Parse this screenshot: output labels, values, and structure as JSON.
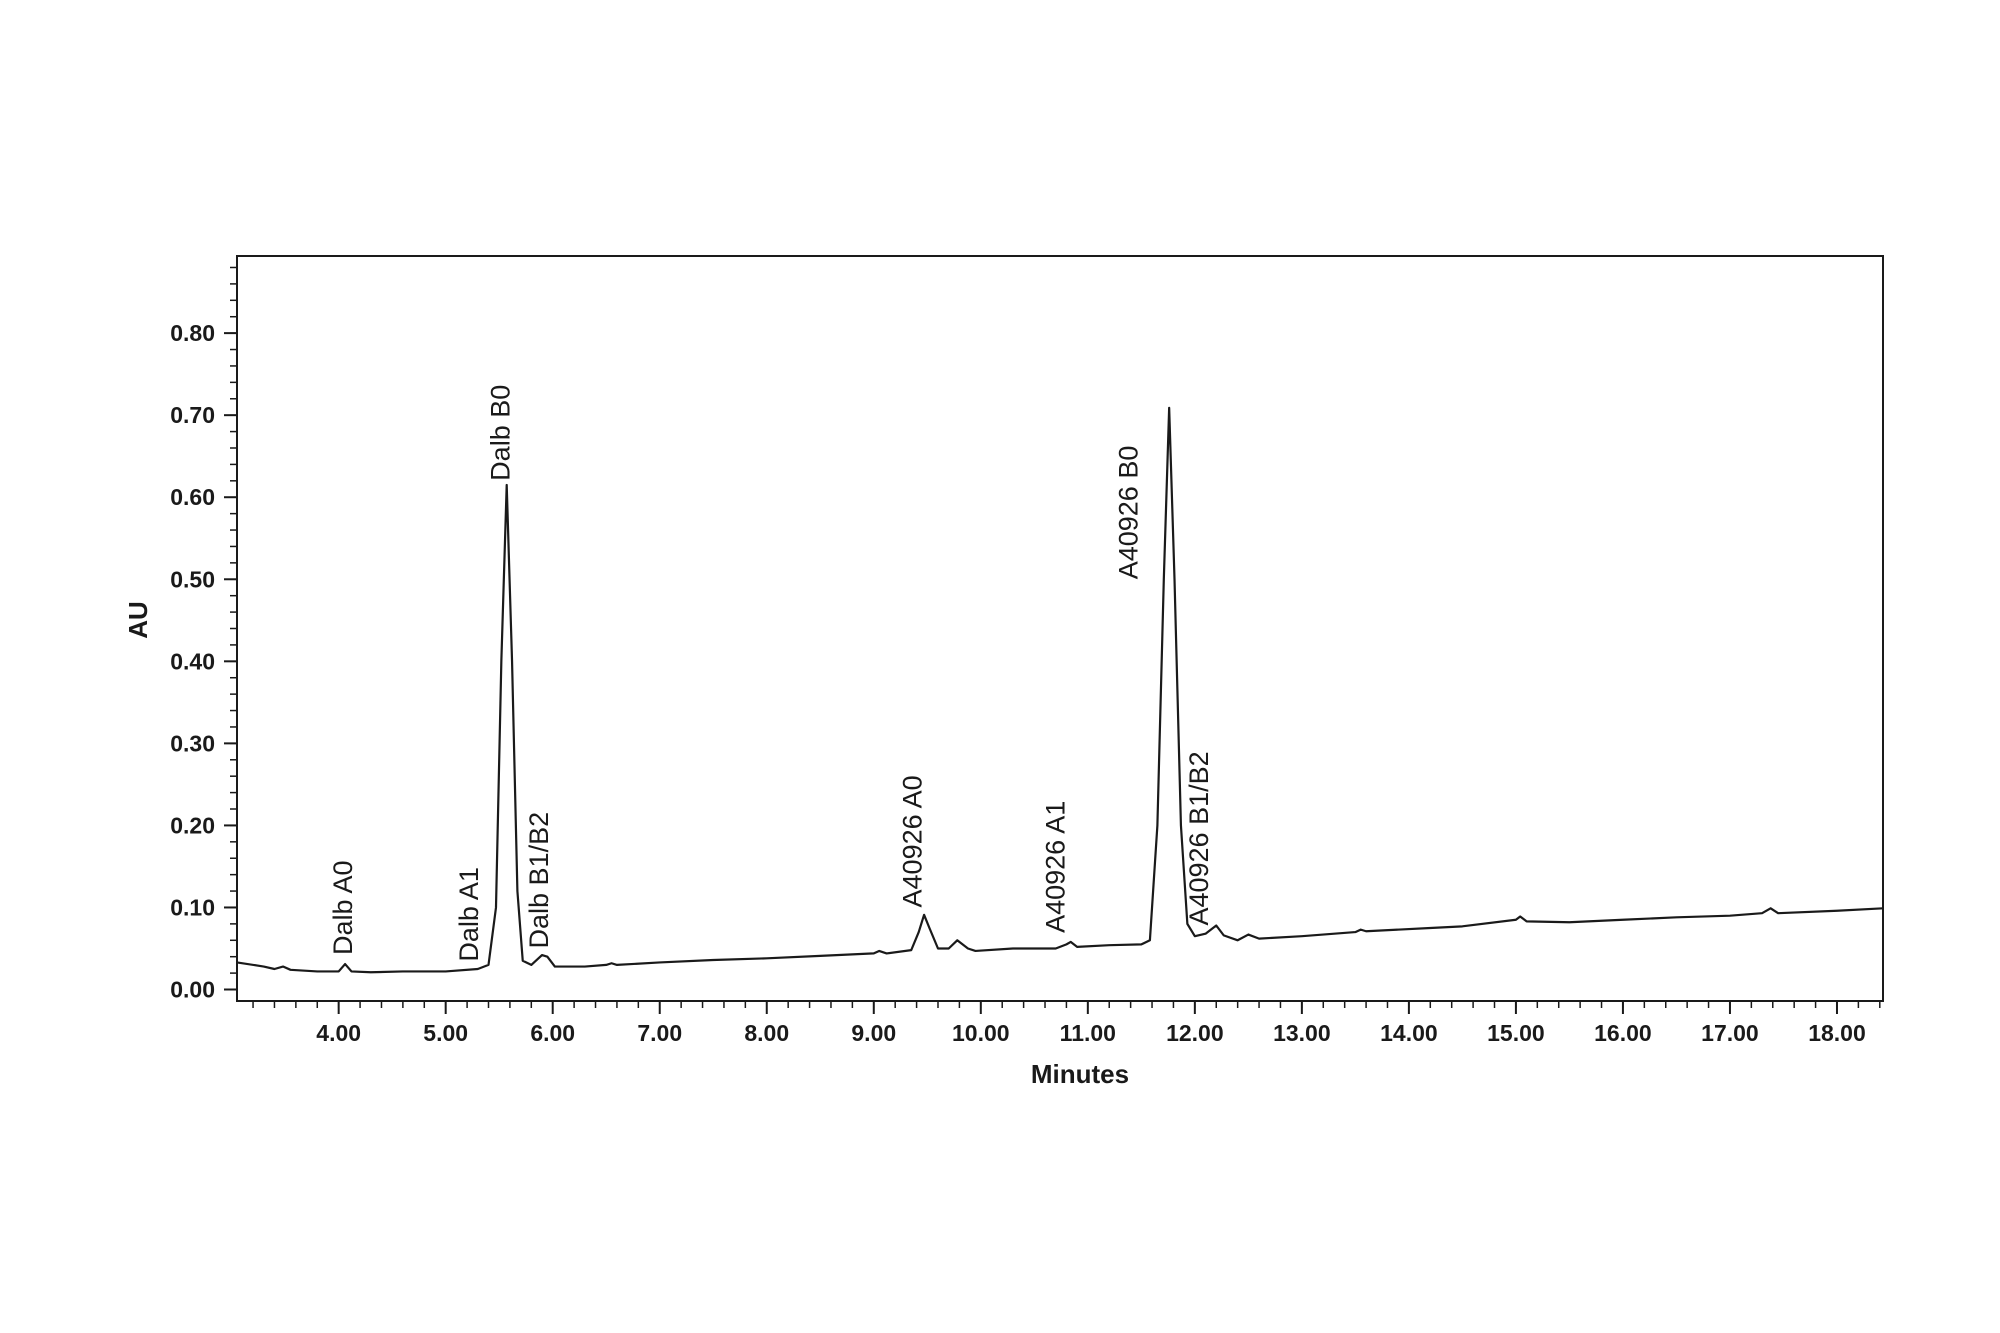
{
  "chart_data": {
    "type": "line",
    "x_label": "Minutes",
    "y_label": "AU",
    "xlim": [
      3.05,
      18.43
    ],
    "ylim": [
      -0.014,
      0.894
    ],
    "xticks": [
      {
        "value": 4,
        "label": "4.00"
      },
      {
        "value": 5,
        "label": "5.00"
      },
      {
        "value": 6,
        "label": "6.00"
      },
      {
        "value": 7,
        "label": "7.00"
      },
      {
        "value": 8,
        "label": "8.00"
      },
      {
        "value": 9,
        "label": "9.00"
      },
      {
        "value": 10,
        "label": "10.00"
      },
      {
        "value": 11,
        "label": "11.00"
      },
      {
        "value": 12,
        "label": "12.00"
      },
      {
        "value": 13,
        "label": "13.00"
      },
      {
        "value": 14,
        "label": "14.00"
      },
      {
        "value": 15,
        "label": "15.00"
      },
      {
        "value": 16,
        "label": "16.00"
      },
      {
        "value": 17,
        "label": "17.00"
      },
      {
        "value": 18,
        "label": "18.00"
      }
    ],
    "yticks": [
      {
        "value": 0,
        "label": "0.00"
      },
      {
        "value": 0.1,
        "label": "0.10"
      },
      {
        "value": 0.2,
        "label": "0.20"
      },
      {
        "value": 0.3,
        "label": "0.30"
      },
      {
        "value": 0.4,
        "label": "0.40"
      },
      {
        "value": 0.5,
        "label": "0.50"
      },
      {
        "value": 0.6,
        "label": "0.60"
      },
      {
        "value": 0.7,
        "label": "0.70"
      },
      {
        "value": 0.8,
        "label": "0.80"
      }
    ],
    "xminor": 0.2,
    "yminor": 0.02,
    "grid": false,
    "color": "#1a1a1a",
    "x": [
      3.05,
      3.3,
      3.4,
      3.48,
      3.55,
      3.8,
      4.0,
      4.06,
      4.12,
      4.3,
      4.6,
      5.0,
      5.3,
      5.4,
      5.47,
      5.52,
      5.57,
      5.62,
      5.67,
      5.72,
      5.8,
      5.9,
      5.95,
      6.02,
      6.3,
      6.5,
      6.55,
      6.6,
      7.0,
      7.5,
      8.0,
      8.5,
      9.0,
      9.05,
      9.12,
      9.35,
      9.42,
      9.47,
      9.52,
      9.6,
      9.7,
      9.78,
      9.88,
      9.95,
      10.3,
      10.7,
      10.8,
      10.84,
      10.9,
      11.2,
      11.5,
      11.58,
      11.65,
      11.71,
      11.76,
      11.81,
      11.87,
      11.93,
      12.0,
      12.1,
      12.2,
      12.27,
      12.4,
      12.5,
      12.6,
      13.0,
      13.5,
      13.55,
      13.6,
      14.2,
      14.5,
      15.0,
      15.04,
      15.1,
      15.5,
      16.0,
      16.5,
      17.0,
      17.3,
      17.38,
      17.45,
      18.0,
      18.43
    ],
    "values": [
      0.033,
      0.028,
      0.025,
      0.028,
      0.024,
      0.022,
      0.022,
      0.031,
      0.022,
      0.021,
      0.022,
      0.022,
      0.025,
      0.03,
      0.1,
      0.4,
      0.615,
      0.4,
      0.12,
      0.035,
      0.03,
      0.042,
      0.04,
      0.028,
      0.028,
      0.03,
      0.032,
      0.03,
      0.033,
      0.036,
      0.038,
      0.041,
      0.044,
      0.047,
      0.044,
      0.048,
      0.07,
      0.091,
      0.075,
      0.05,
      0.05,
      0.06,
      0.05,
      0.047,
      0.05,
      0.05,
      0.055,
      0.058,
      0.052,
      0.054,
      0.055,
      0.06,
      0.2,
      0.5,
      0.709,
      0.5,
      0.2,
      0.08,
      0.065,
      0.068,
      0.078,
      0.066,
      0.06,
      0.067,
      0.062,
      0.065,
      0.07,
      0.073,
      0.071,
      0.075,
      0.077,
      0.085,
      0.089,
      0.083,
      0.082,
      0.085,
      0.088,
      0.09,
      0.093,
      0.099,
      0.093,
      0.096,
      0.099
    ],
    "annotations": [
      {
        "text": "Dalb A0",
        "x": 4.04,
        "y": 0.042
      },
      {
        "text": "Dalb A1",
        "x": 5.22,
        "y": 0.034
      },
      {
        "text": "Dalb B0",
        "x": 5.51,
        "y": 0.62
      },
      {
        "text": "Dalb B1/B2",
        "x": 5.87,
        "y": 0.05
      },
      {
        "text": "A40926 A0",
        "x": 9.36,
        "y": 0.1
      },
      {
        "text": "A40926 A1",
        "x": 10.7,
        "y": 0.069
      },
      {
        "text": "A40926 B0",
        "x": 11.38,
        "y": 0.5
      },
      {
        "text": "A40926 B1/B2",
        "x": 12.04,
        "y": 0.078
      }
    ]
  }
}
